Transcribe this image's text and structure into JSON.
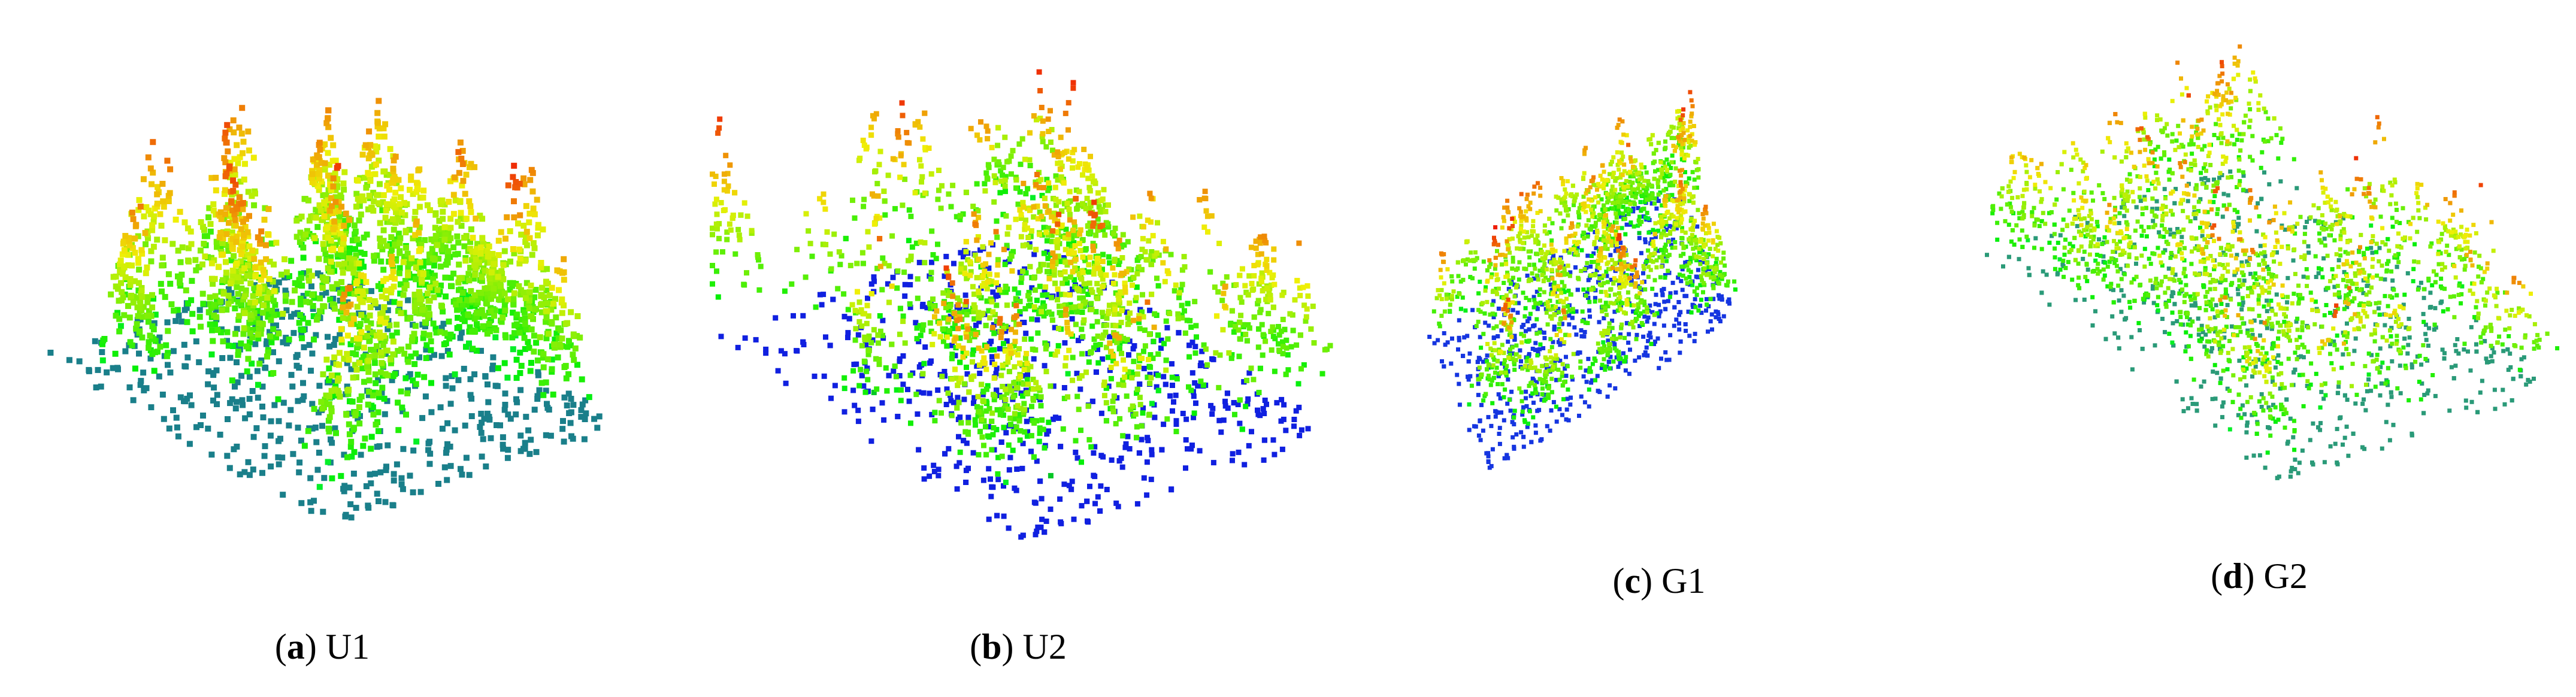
{
  "panels": [
    {
      "caption": [
        "(",
        "a",
        ") U1"
      ]
    },
    {
      "caption": [
        "(",
        "b",
        ") U2"
      ]
    },
    {
      "caption": [
        "(",
        "c",
        ") G1"
      ]
    },
    {
      "caption": [
        "(",
        "d",
        ") G2"
      ]
    }
  ]
}
